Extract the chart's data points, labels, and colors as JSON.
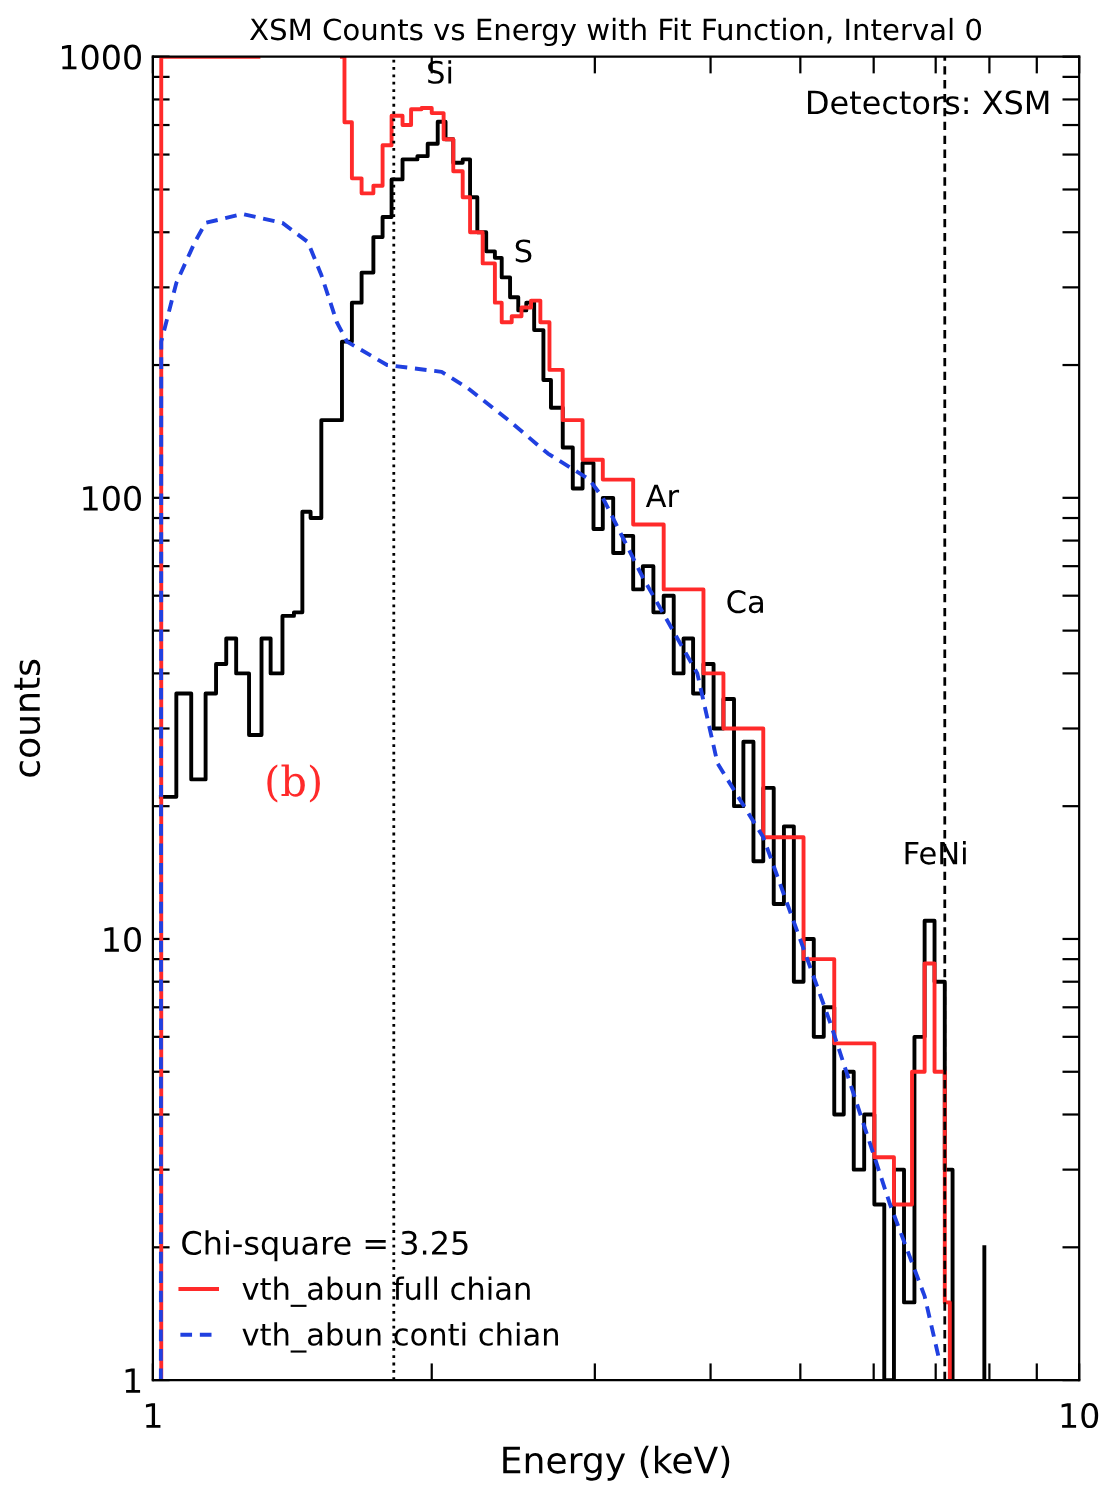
{
  "chart_data": {
    "type": "step",
    "title": "XSM Counts vs Energy with Fit Function, Interval 0",
    "xlabel": "Energy (keV)",
    "ylabel": "counts",
    "log": "xy",
    "legend": "bottom left",
    "legend_title": "Chi-square = 3.25",
    "grid": false,
    "xlim": [
      1,
      10
    ],
    "ylim": [
      1,
      1000
    ],
    "xticks": [
      1,
      {
        "value": 2,
        "label": null
      },
      {
        "value": 3,
        "label": null
      },
      {
        "value": 4,
        "label": null
      },
      {
        "value": 5,
        "label": null
      },
      {
        "value": 6,
        "label": null
      },
      {
        "value": 7,
        "label": null
      },
      {
        "value": 8,
        "label": null
      },
      {
        "value": 9,
        "label": null
      },
      10
    ],
    "yticks": [
      1,
      {
        "value": 2,
        "label": null
      },
      {
        "value": 3,
        "label": null
      },
      {
        "value": 4,
        "label": null
      },
      {
        "value": 5,
        "label": null
      },
      {
        "value": 6,
        "label": null
      },
      {
        "value": 7,
        "label": null
      },
      {
        "value": 8,
        "label": null
      },
      {
        "value": 9,
        "label": null
      },
      10,
      {
        "value": 20,
        "label": null
      },
      {
        "value": 30,
        "label": null
      },
      {
        "value": 40,
        "label": null
      },
      {
        "value": 50,
        "label": null
      },
      {
        "value": 60,
        "label": null
      },
      {
        "value": 70,
        "label": null
      },
      {
        "value": 80,
        "label": null
      },
      {
        "value": 90,
        "label": null
      },
      100,
      {
        "value": 200,
        "label": null
      },
      {
        "value": 300,
        "label": null
      },
      {
        "value": 400,
        "label": null
      },
      {
        "value": 500,
        "label": null
      },
      {
        "value": 600,
        "label": null
      },
      {
        "value": 700,
        "label": null
      },
      {
        "value": 800,
        "label": null
      },
      {
        "value": 900,
        "label": null
      },
      1000
    ],
    "series": [
      {
        "color": "#000000",
        "line_style": "solid",
        "x": [
          1.02,
          1.06,
          1.1,
          1.14,
          1.17,
          1.2,
          1.23,
          1.27,
          1.31,
          1.34,
          1.38,
          1.42,
          1.45,
          1.48,
          1.52,
          1.6,
          1.64,
          1.68,
          1.73,
          1.77,
          1.81,
          1.86,
          1.93,
          1.98,
          2.03,
          2.07,
          2.11,
          2.16,
          2.2,
          2.24,
          2.29,
          2.34,
          2.38,
          2.43,
          2.48,
          2.53,
          2.58,
          2.64,
          2.69,
          2.77,
          2.84,
          2.91,
          2.99,
          3.06,
          3.14,
          3.22,
          3.3,
          3.38,
          3.47,
          3.56,
          3.65,
          3.74,
          3.83,
          3.93,
          4.03,
          4.13,
          4.24,
          4.34,
          4.45,
          4.56,
          4.68,
          4.8,
          4.92,
          5.04,
          5.17,
          5.3,
          5.44,
          5.57,
          5.71,
          5.86,
          6.01,
          6.16,
          6.31,
          6.47,
          6.64,
          6.81,
          6.98,
          7.16,
          7.3,
          7.3
        ],
        "values": [
          21,
          36,
          23,
          36,
          42,
          48,
          40,
          29,
          48,
          40,
          54,
          55,
          93,
          90,
          150,
          226,
          277,
          324,
          390,
          433,
          527,
          585,
          595,
          635,
          712,
          650,
          575,
          585,
          480,
          400,
          362,
          350,
          316,
          285,
          266,
          277,
          240,
          185,
          160,
          130,
          105,
          120,
          85,
          100,
          75,
          82,
          62,
          70,
          55,
          60,
          40,
          48,
          36,
          42,
          30,
          35,
          20,
          28,
          15,
          22,
          12,
          18,
          8,
          10,
          6,
          7,
          4,
          5,
          3,
          4,
          2.5,
          1,
          3,
          1.5,
          6,
          11,
          8,
          3,
          3,
          1
        ]
      },
      {
        "type": "line",
        "color": "#000000",
        "line_style": "solid",
        "x": [
          7.9,
          7.9
        ],
        "values": [
          1,
          2
        ]
      },
      {
        "type": "step",
        "name": "vth_abun full chian",
        "color": "#ff2a2a",
        "line_style": "solid",
        "x": [
          1.02,
          1.021,
          1.3,
          1.6,
          1.61,
          1.64,
          1.68,
          1.73,
          1.77,
          1.81,
          1.86,
          1.9,
          1.95,
          2.0,
          2.06,
          2.11,
          2.16,
          2.2,
          2.27,
          2.34,
          2.38,
          2.44,
          2.5,
          2.56,
          2.62,
          2.68,
          2.77,
          2.91,
          3.06,
          3.3,
          3.56,
          3.93,
          4.13,
          4.56,
          5.04,
          5.44,
          6.01,
          6.31,
          6.6,
          6.81,
          6.98,
          7.16,
          7.25
        ],
        "values": [
          1,
          1000,
          null,
          1000,
          710,
          530,
          490,
          510,
          630,
          735,
          700,
          760,
          765,
          745,
          650,
          550,
          480,
          400,
          340,
          277,
          250,
          258,
          270,
          280,
          250,
          195,
          150,
          122,
          110,
          87,
          62,
          40,
          30,
          17,
          9,
          5.8,
          3.2,
          2.5,
          5,
          8.8,
          5,
          1.5,
          1
        ]
      },
      {
        "type": "line",
        "name": "vth_abun conti chian",
        "color": "#2040e0",
        "line_style": "dashed",
        "x": [
          1.02,
          1.021,
          1.06,
          1.11,
          1.14,
          1.25,
          1.38,
          1.47,
          1.52,
          1.58,
          1.62,
          1.79,
          2.05,
          2.19,
          2.42,
          2.67,
          2.96,
          3.06,
          3.38,
          3.87,
          4.07,
          4.56,
          5.38,
          6.25,
          6.81,
          7.07
        ],
        "values": [
          1,
          226,
          307,
          380,
          420,
          440,
          420,
          380,
          320,
          250,
          226,
          200,
          193,
          177,
          150,
          126,
          110,
          100,
          66,
          40,
          25,
          17,
          6.5,
          2.5,
          1.55,
          1.1
        ]
      }
    ],
    "ref_lines": [
      {
        "axis": "x",
        "value": 1.82,
        "line_style": "dotted",
        "color": "#000000"
      },
      {
        "axis": "x",
        "value": 7.16,
        "line_style": "dashed",
        "color": "#000000"
      }
    ],
    "annotations": [
      "Detectors: XSM",
      "(b)",
      "Si",
      "S",
      "Ar",
      "Ca",
      "FeNi"
    ]
  }
}
